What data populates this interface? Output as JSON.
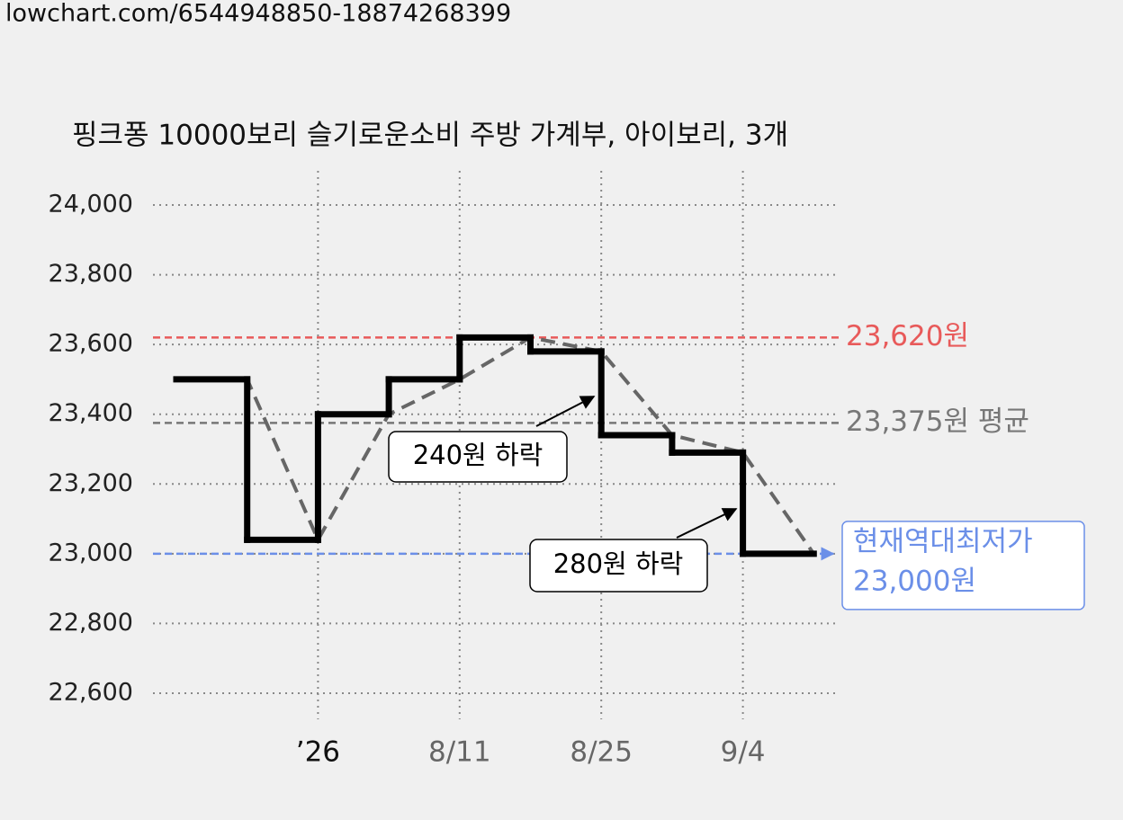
{
  "header": {
    "url": "lowchart.com/6544948850-18874268399"
  },
  "chart_data": {
    "type": "line",
    "step": "before",
    "title": "핑크퐁 10000보리 슬기로운소비 주방 가계부, 아이보리, 3개",
    "categories": [
      null,
      null,
      "’26",
      null,
      "8/11",
      null,
      "8/25",
      null,
      "9/4",
      null
    ],
    "series": [
      {
        "color": "#000000",
        "trend_color": "#666666",
        "values": [
          23500,
          23500,
          23040,
          23400,
          23500,
          23620,
          23580,
          23340,
          23290,
          23000
        ]
      }
    ],
    "ylim": [
      22600,
      24000
    ],
    "yticks": [
      {
        "value": 24000,
        "label": "24,000"
      },
      {
        "value": 23800,
        "label": "23,800"
      },
      {
        "value": 23600,
        "label": "23,600"
      },
      {
        "value": 23400,
        "label": "23,400"
      },
      {
        "value": 23200,
        "label": "23,200"
      },
      {
        "value": 23000,
        "label": "23,000"
      },
      {
        "value": 22800,
        "label": "22,800"
      },
      {
        "value": 22600,
        "label": "22,600"
      }
    ],
    "grid": true,
    "reference_lines": [
      {
        "value": 23620,
        "label": "23,620원",
        "color": "#e85a5a"
      },
      {
        "value": 23375,
        "label": "23,375원 평균",
        "color": "#777777"
      },
      {
        "value": 23000,
        "label_lines": [
          "현재역대최저가",
          "23,000원"
        ],
        "color": "#6b8fe8"
      }
    ],
    "annotations": [
      {
        "text": "240원 하락"
      },
      {
        "text": "280원 하락"
      }
    ]
  }
}
